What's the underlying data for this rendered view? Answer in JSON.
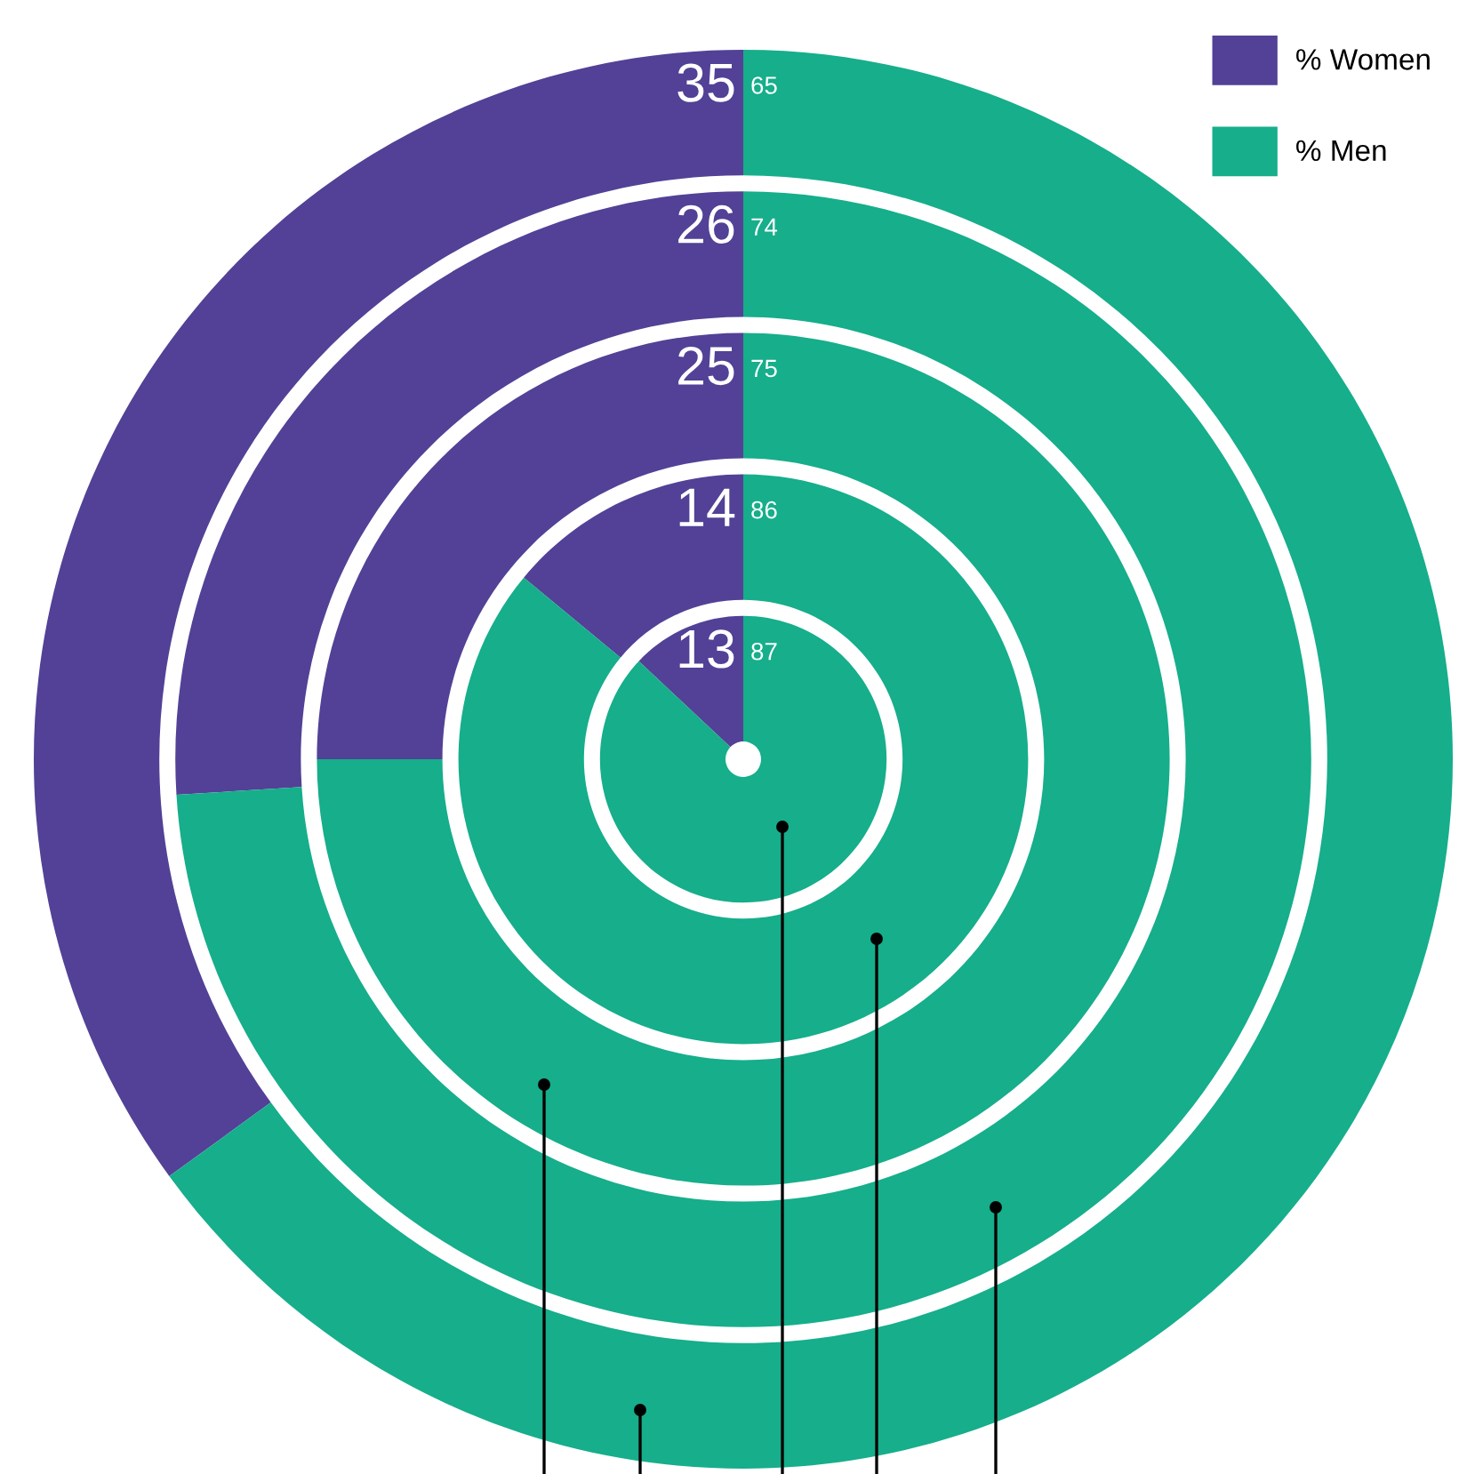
{
  "chart_data": {
    "type": "donut",
    "categories": [
      "% Women",
      "% Men"
    ],
    "colors": [
      "#524196",
      "#16ae8b"
    ],
    "series": [
      {
        "values": [
          13,
          87
        ]
      },
      {
        "values": [
          14,
          86
        ]
      },
      {
        "values": [
          25,
          75
        ]
      },
      {
        "values": [
          26,
          74
        ]
      },
      {
        "values": [
          35,
          65
        ]
      }
    ],
    "data_labels": true,
    "legend": "top right"
  }
}
